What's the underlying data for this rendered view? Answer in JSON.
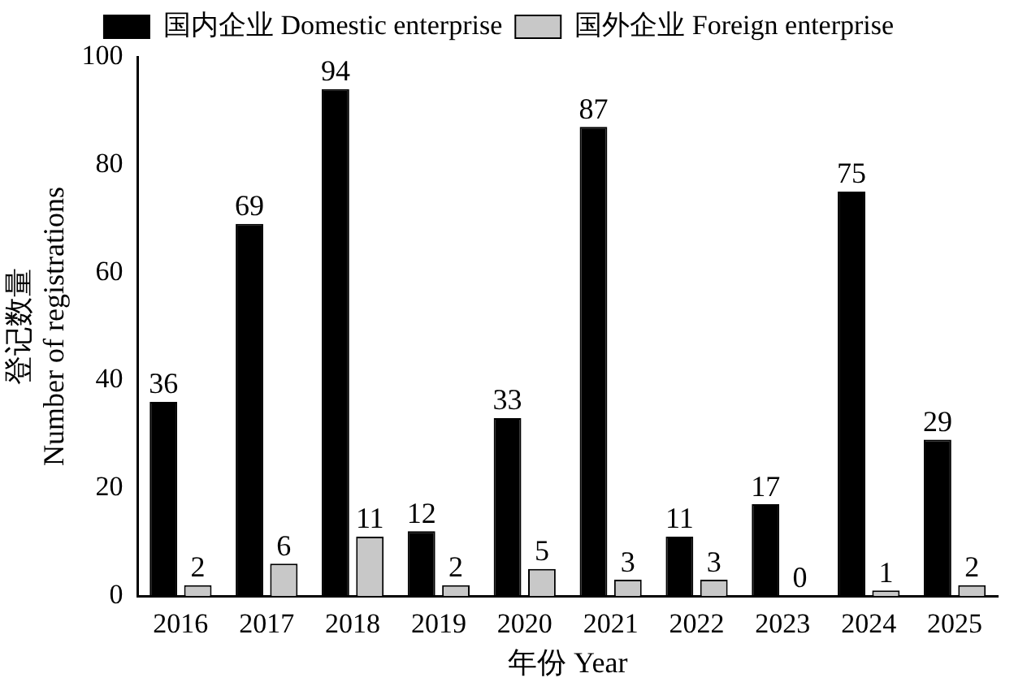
{
  "chart_data": {
    "type": "bar",
    "xlabel": "年份 Year",
    "ylabel": "登记数量\nNumber of registrations",
    "categories": [
      "2016",
      "2017",
      "2018",
      "2019",
      "2020",
      "2021",
      "2022",
      "2023",
      "2024",
      "2025"
    ],
    "series": [
      {
        "name": "国内企业 Domestic enterprise",
        "color": "#000000",
        "values": [
          36,
          69,
          94,
          12,
          33,
          87,
          11,
          17,
          75,
          29
        ]
      },
      {
        "name": "国外企业 Foreign enterprise",
        "color": "#c8c8c8",
        "values": [
          2,
          6,
          11,
          2,
          5,
          3,
          3,
          0,
          1,
          2
        ]
      }
    ],
    "ylim": [
      0,
      100
    ],
    "yticks": [
      0,
      20,
      40,
      60,
      80,
      100
    ],
    "grid": false,
    "legend": "top",
    "data_labels": true
  }
}
